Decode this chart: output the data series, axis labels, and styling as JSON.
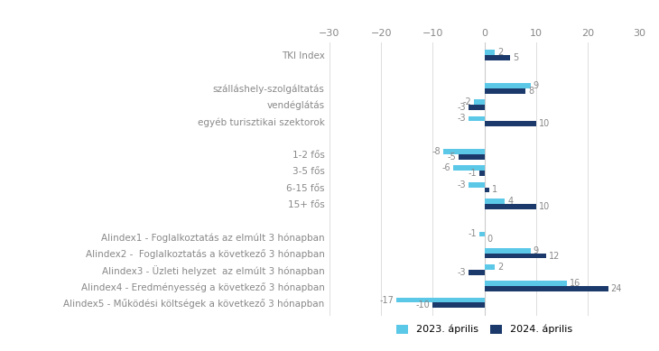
{
  "categories": [
    "TKI Index",
    "",
    "szálláshely-szolgáltatás",
    "vendéglátás",
    "egyéb turisztikai szektorok",
    "",
    "1-2 fős",
    "3-5 fős",
    "6-15 fős",
    "15+ fős",
    "",
    "Alindex1 - Foglalkoztatás az elmúlt 3 hónapban",
    "Alindex2 -  Foglalkoztatás a következő 3 hónapban",
    "Alindex3 - Üzleti helyzet  az elmúlt 3 hónapban",
    "Alindex4 - Eredményesség a következő 3 hónapban",
    "Alindex5 - Működési költségek a következő 3 hónapban"
  ],
  "values_2023": [
    2,
    null,
    9,
    -2,
    -3,
    null,
    -8,
    -6,
    -3,
    4,
    null,
    -1,
    9,
    2,
    16,
    -17
  ],
  "values_2024": [
    5,
    null,
    8,
    -3,
    10,
    null,
    -5,
    -1,
    1,
    10,
    null,
    0,
    12,
    -3,
    24,
    -10
  ],
  "color_2023": "#5BC8E8",
  "color_2024": "#1B3A6B",
  "xlim": [
    -30,
    30
  ],
  "xticks": [
    -30,
    -20,
    -10,
    0,
    10,
    20,
    30
  ],
  "legend_2023": "2023. április",
  "legend_2024": "2024. április",
  "background_color": "#ffffff",
  "bar_height": 0.32,
  "label_fontsize": 7.0,
  "tick_fontsize": 8,
  "legend_fontsize": 8,
  "ytick_fontsize": 7.5,
  "label_color": "#888888",
  "ytick_color": "#888888"
}
